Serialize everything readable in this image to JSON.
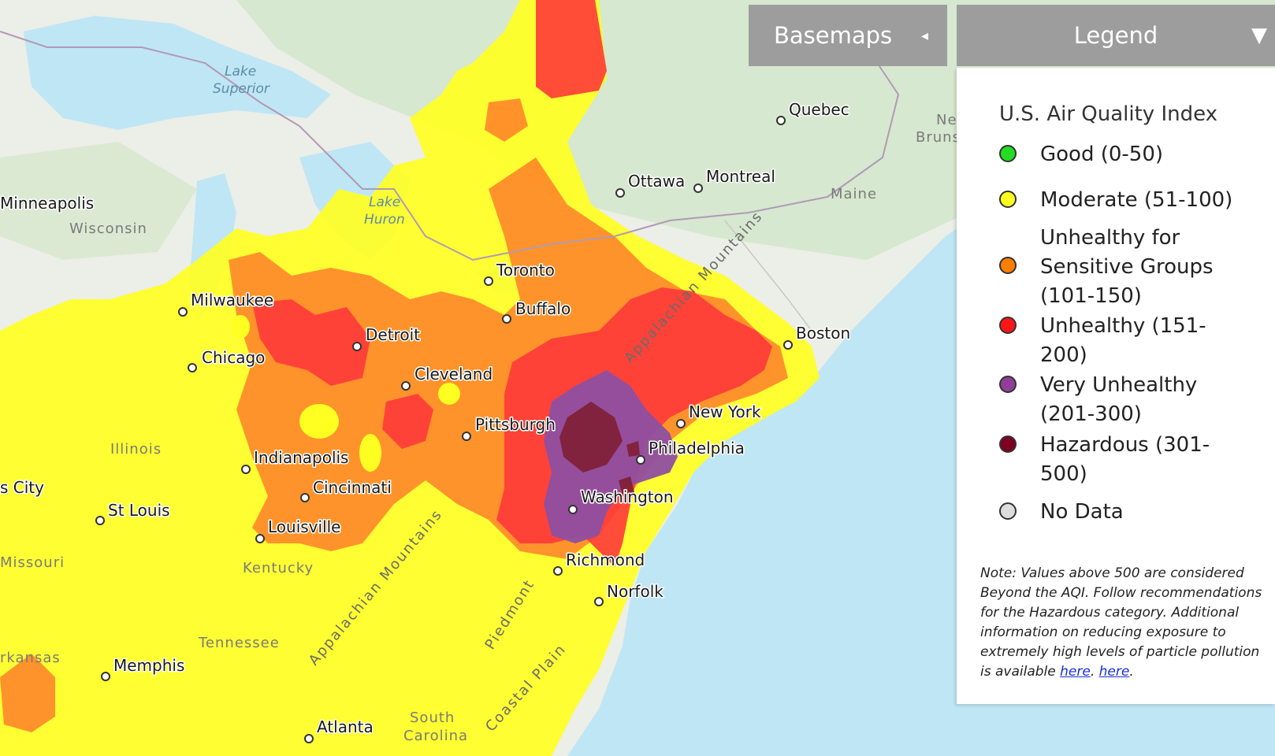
{
  "header": {
    "basemaps_label": "Basemaps",
    "basemaps_arrow": "◂",
    "legend_label": "Legend",
    "legend_arrow": "▼"
  },
  "legend": {
    "title": "U.S. Air Quality Index",
    "items": [
      {
        "label": "Good (0-50)",
        "color": "#22dd22"
      },
      {
        "label": "Moderate (51-100)",
        "color": "#ffff22"
      },
      {
        "label": "Unhealthy for Sensitive Groups (101-150)",
        "color": "#ff7e00"
      },
      {
        "label": "Unhealthy (151-200)",
        "color": "#ff1515"
      },
      {
        "label": "Very Unhealthy (201-300)",
        "color": "#8f3f97"
      },
      {
        "label": "Hazardous (301-500)",
        "color": "#7e0023"
      },
      {
        "label": "No Data",
        "color": "#dddddd"
      }
    ],
    "note_prefix": "Note: Values above 500 are considered Beyond the AQI. Follow recommendations for the Hazardous category. Additional information on reducing exposure to extremely high levels of particle pollution is available ",
    "note_link1": "here",
    "note_sep": ". ",
    "note_link2": "here",
    "note_suffix": "."
  },
  "map": {
    "colors": {
      "land": "#eceee8",
      "forest": "#d6e8cf",
      "water": "#bfe6f5",
      "moderate": "#ffff22",
      "usg": "#ff8a2a",
      "unhealthy": "#ff3a3a",
      "very_unhealthy": "#8f4fa0",
      "hazardous": "#7e1f34"
    },
    "cities": [
      "Minneapolis",
      "Milwaukee",
      "Chicago",
      "Detroit",
      "Toronto",
      "Buffalo",
      "Cleveland",
      "Pittsburgh",
      "Indianapolis",
      "Cincinnati",
      "Louisville",
      "St Louis",
      "Memphis",
      "Atlanta",
      "Richmond",
      "Norfolk",
      "Washington",
      "Philadelphia",
      "New York",
      "Boston",
      "Ottawa",
      "Montreal",
      "Quebec",
      "s City"
    ],
    "regions": [
      "Wisconsin",
      "Illinois",
      "Missouri",
      "Kentucky",
      "Tennessee",
      "South",
      "Carolina",
      "Maine",
      "Ne",
      "Bruns",
      "rkansas"
    ],
    "water": [
      "Lake",
      "Superior",
      "Lake",
      "Huron"
    ],
    "mountains": [
      "Appalachian Mountains",
      "Appalachian Mountains",
      "Piedmont",
      "Coastal Plain"
    ]
  }
}
